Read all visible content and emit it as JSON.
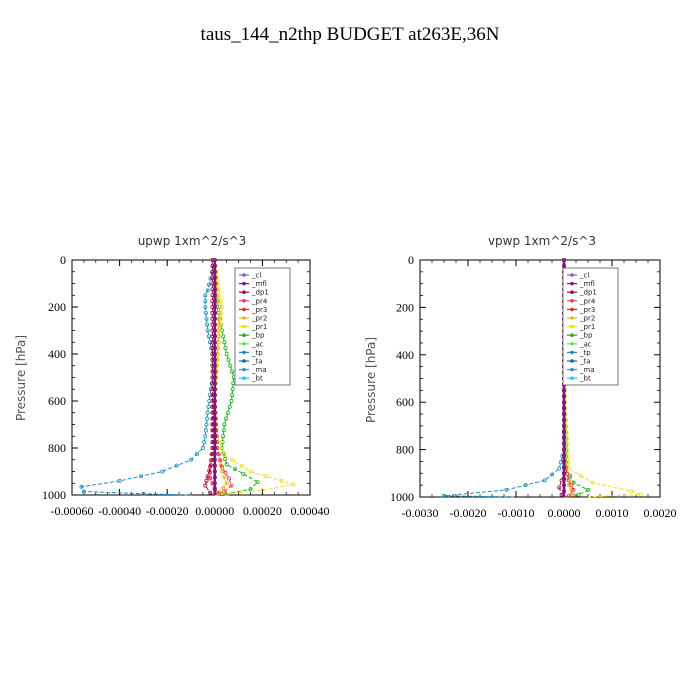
{
  "figure": {
    "title": "taus_144_n2thp  BUDGET at263E,36N"
  },
  "legend_entries": [
    {
      "name": "_cl",
      "color": "#8a5cc7"
    },
    {
      "name": "_mfl",
      "color": "#7a1a7a"
    },
    {
      "name": "_dp1",
      "color": "#a0104a"
    },
    {
      "name": "_pr4",
      "color": "#e0405a"
    },
    {
      "name": "_pr3",
      "color": "#e8203a"
    },
    {
      "name": "_pr2",
      "color": "#f0b020"
    },
    {
      "name": "_pr1",
      "color": "#f0e020"
    },
    {
      "name": "_bp",
      "color": "#20b020"
    },
    {
      "name": "_ac",
      "color": "#60e060"
    },
    {
      "name": "_tp",
      "color": "#2090c0"
    },
    {
      "name": "_ta",
      "color": "#2060b0"
    },
    {
      "name": "_ma",
      "color": "#4090d0"
    },
    {
      "name": "_bt",
      "color": "#20d0f0"
    }
  ],
  "chart_data": [
    {
      "type": "line",
      "title": "upwp   1xm^2/s^3",
      "ylabel": "Pressure [hPa]",
      "xlabel": "",
      "xlim": [
        -0.0006,
        0.0004
      ],
      "ylim": [
        1000,
        0
      ],
      "yticks": [
        0,
        200,
        400,
        600,
        800,
        1000
      ],
      "xticks": [
        "-0.00060",
        "-0.00040",
        "-0.00020",
        "0.00000",
        "0.00020",
        "0.00040"
      ],
      "xtick_values": [
        -0.0006,
        -0.0004,
        -0.0002,
        0,
        0.0002,
        0.0004
      ],
      "series": [
        {
          "name": "_tp",
          "color": "#2090c0",
          "points": [
            [
              0.0,
              0
            ],
            [
              -3e-05,
              130
            ],
            [
              -4e-05,
              150
            ],
            [
              -4e-05,
              200
            ],
            [
              -3e-05,
              300
            ],
            [
              -1e-05,
              400
            ],
            [
              -1e-05,
              500
            ],
            [
              -3e-05,
              650
            ],
            [
              -4e-05,
              750
            ],
            [
              -5e-05,
              800
            ],
            [
              -0.0001,
              850
            ],
            [
              -0.00022,
              900
            ],
            [
              -0.0004,
              940
            ],
            [
              -0.00056,
              965
            ],
            [
              -0.00055,
              985
            ],
            [
              -0.0003,
              995
            ],
            [
              -0.0001,
              1000
            ]
          ]
        },
        {
          "name": "_bp",
          "color": "#20b020",
          "points": [
            [
              0.0,
              0
            ],
            [
              1e-05,
              200
            ],
            [
              5e-05,
              400
            ],
            [
              8e-05,
              500
            ],
            [
              7e-05,
              600
            ],
            [
              4e-05,
              700
            ],
            [
              3e-05,
              800
            ],
            [
              5e-05,
              870
            ],
            [
              0.00012,
              910
            ],
            [
              0.00018,
              945
            ],
            [
              0.00015,
              975
            ],
            [
              5e-05,
              995
            ],
            [
              0.0,
              1000
            ]
          ]
        },
        {
          "name": "_pr1",
          "color": "#f0e020",
          "points": [
            [
              0.0,
              0
            ],
            [
              2e-05,
              150
            ],
            [
              3e-05,
              200
            ],
            [
              2e-05,
              300
            ],
            [
              1e-05,
              450
            ],
            [
              0.0,
              600
            ],
            [
              1e-05,
              750
            ],
            [
              4e-05,
              830
            ],
            [
              0.00015,
              900
            ],
            [
              0.00028,
              940
            ],
            [
              0.00033,
              955
            ],
            [
              0.0002,
              980
            ],
            [
              5e-05,
              995
            ],
            [
              0.0,
              1000
            ]
          ]
        },
        {
          "name": "_pr2",
          "color": "#f0b020",
          "points": [
            [
              0.0,
              0
            ],
            [
              1e-05,
              150
            ],
            [
              2e-05,
              200
            ],
            [
              1e-05,
              400
            ],
            [
              0.0,
              600
            ],
            [
              1e-05,
              800
            ],
            [
              3e-05,
              900
            ],
            [
              5e-05,
              950
            ],
            [
              2e-05,
              990
            ],
            [
              0.0,
              1000
            ]
          ]
        },
        {
          "name": "_pr3",
          "color": "#e8203a",
          "points": [
            [
              0.0,
              0
            ],
            [
              0.0,
              500
            ],
            [
              -1e-05,
              800
            ],
            [
              -2e-05,
              880
            ],
            [
              -2e-05,
              930
            ],
            [
              0.0,
              970
            ],
            [
              1e-05,
              990
            ],
            [
              0.0,
              1000
            ]
          ]
        },
        {
          "name": "_pr4",
          "color": "#e0405a",
          "points": [
            [
              0.0,
              0
            ],
            [
              0.0,
              600
            ],
            [
              1e-05,
              800
            ],
            [
              3e-05,
              880
            ],
            [
              6e-05,
              930
            ],
            [
              7e-05,
              960
            ],
            [
              4e-05,
              985
            ],
            [
              0.0,
              1000
            ]
          ]
        },
        {
          "name": "_dp1",
          "color": "#a0104a",
          "points": [
            [
              -1e-05,
              0
            ],
            [
              -1e-05,
              500
            ],
            [
              -1e-05,
              850
            ],
            [
              -3e-05,
              920
            ],
            [
              -4e-05,
              960
            ],
            [
              -2e-05,
              990
            ],
            [
              0.0,
              1000
            ]
          ]
        },
        {
          "name": "_cl",
          "color": "#8a5cc7",
          "points": [
            [
              0.0,
              0
            ],
            [
              0.0,
              1000
            ]
          ]
        },
        {
          "name": "_mfl",
          "color": "#7a1a7a",
          "points": [
            [
              0.0,
              0
            ],
            [
              0.0,
              1000
            ]
          ]
        }
      ]
    },
    {
      "type": "line",
      "title": "vpwp   1xm^2/s^3",
      "ylabel": "Pressure [hPa]",
      "xlabel": "",
      "xlim": [
        -0.003,
        0.002
      ],
      "ylim": [
        1000,
        0
      ],
      "yticks": [
        0,
        200,
        400,
        600,
        800,
        1000
      ],
      "xticks": [
        "-0.0030",
        "-0.0020",
        "-0.0010",
        "0.0000",
        "0.0010",
        "0.0020"
      ],
      "xtick_values": [
        -0.003,
        -0.002,
        -0.001,
        0,
        0.001,
        0.002
      ],
      "series": [
        {
          "name": "_tp",
          "color": "#2090c0",
          "points": [
            [
              0.0,
              0
            ],
            [
              0.0,
              800
            ],
            [
              -0.0001,
              880
            ],
            [
              -0.0004,
              930
            ],
            [
              -0.0012,
              970
            ],
            [
              -0.0025,
              995
            ],
            [
              -0.001,
              1000
            ]
          ]
        },
        {
          "name": "_bp",
          "color": "#20b020",
          "points": [
            [
              0.0,
              0
            ],
            [
              2e-05,
              600
            ],
            [
              5e-05,
              880
            ],
            [
              0.0002,
              940
            ],
            [
              0.0005,
              970
            ],
            [
              0.0003,
              990
            ],
            [
              0.0,
              1000
            ]
          ]
        },
        {
          "name": "_pr1",
          "color": "#f0e020",
          "points": [
            [
              0.0,
              0
            ],
            [
              2e-05,
              600
            ],
            [
              0.0001,
              880
            ],
            [
              0.0006,
              940
            ],
            [
              0.0014,
              975
            ],
            [
              0.0016,
              990
            ],
            [
              0.0005,
              1000
            ]
          ]
        },
        {
          "name": "_pr2",
          "color": "#f0b020",
          "points": [
            [
              0.0,
              0
            ],
            [
              0.0,
              800
            ],
            [
              0.0001,
              950
            ],
            [
              0.0002,
              990
            ],
            [
              0.0,
              1000
            ]
          ]
        },
        {
          "name": "_pr4",
          "color": "#e0405a",
          "points": [
            [
              0.0,
              0
            ],
            [
              0.0,
              850
            ],
            [
              0.0001,
              930
            ],
            [
              0.0002,
              970
            ],
            [
              0.0001,
              995
            ],
            [
              0.0,
              1000
            ]
          ]
        },
        {
          "name": "_dp1",
          "color": "#a0104a",
          "points": [
            [
              0.0,
              0
            ],
            [
              0.0,
              900
            ],
            [
              -0.0001,
              960
            ],
            [
              -5e-05,
              990
            ],
            [
              0.0,
              1000
            ]
          ]
        },
        {
          "name": "_cl",
          "color": "#8a5cc7",
          "points": [
            [
              0.0,
              0
            ],
            [
              0.0,
              1000
            ]
          ]
        },
        {
          "name": "_mfl",
          "color": "#7a1a7a",
          "points": [
            [
              0.0,
              0
            ],
            [
              0.0,
              1000
            ]
          ]
        }
      ]
    }
  ]
}
